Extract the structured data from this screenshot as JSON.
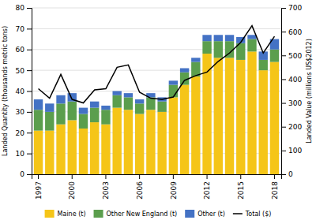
{
  "chart_data": {
    "type": "bar",
    "stacked": true,
    "categories": [
      "1997",
      null,
      null,
      "2000",
      null,
      null,
      "2003",
      null,
      null,
      "2006",
      null,
      null,
      "2009",
      null,
      null,
      "2012",
      null,
      null,
      "2015",
      null,
      null,
      "2018"
    ],
    "series": [
      {
        "name": "Maine (t)",
        "color": "#F5C518",
        "values": [
          21,
          21,
          24,
          26,
          22,
          25,
          24,
          32,
          31,
          29,
          31,
          30,
          37,
          43,
          47,
          58,
          56,
          56,
          55,
          59,
          50,
          54
        ]
      },
      {
        "name": "Other New England (t)",
        "color": "#5B9E4D",
        "values": [
          10,
          9,
          10,
          9,
          7,
          7,
          7,
          6,
          6,
          5,
          6,
          5,
          6,
          6,
          7,
          6,
          8,
          8,
          8,
          6,
          5,
          6
        ]
      },
      {
        "name": "Other (t)",
        "color": "#4472C4",
        "values": [
          5,
          4,
          4,
          4,
          3,
          3,
          2,
          2,
          2,
          2,
          2,
          2,
          2,
          2,
          2,
          3,
          3,
          3,
          3,
          2,
          4,
          5
        ]
      },
      {
        "name": "Total ($)",
        "type": "line",
        "axis": "y2",
        "color": "#000000",
        "values": [
          360,
          320,
          420,
          315,
          300,
          355,
          360,
          450,
          460,
          345,
          320,
          315,
          325,
          395,
          415,
          430,
          475,
          510,
          555,
          625,
          510,
          580
        ]
      }
    ],
    "ylabel": "Landed Quantity (thousands metric tons)",
    "y2label": "Landed Value (millions US$2012)",
    "ylim": [
      0,
      80
    ],
    "yticks": [
      0,
      10,
      20,
      30,
      40,
      50,
      60,
      70,
      80
    ],
    "y2lim": [
      0,
      700
    ],
    "y2ticks": [
      0,
      100,
      200,
      300,
      400,
      500,
      600,
      700
    ],
    "grid": true,
    "legend": "bottom"
  }
}
